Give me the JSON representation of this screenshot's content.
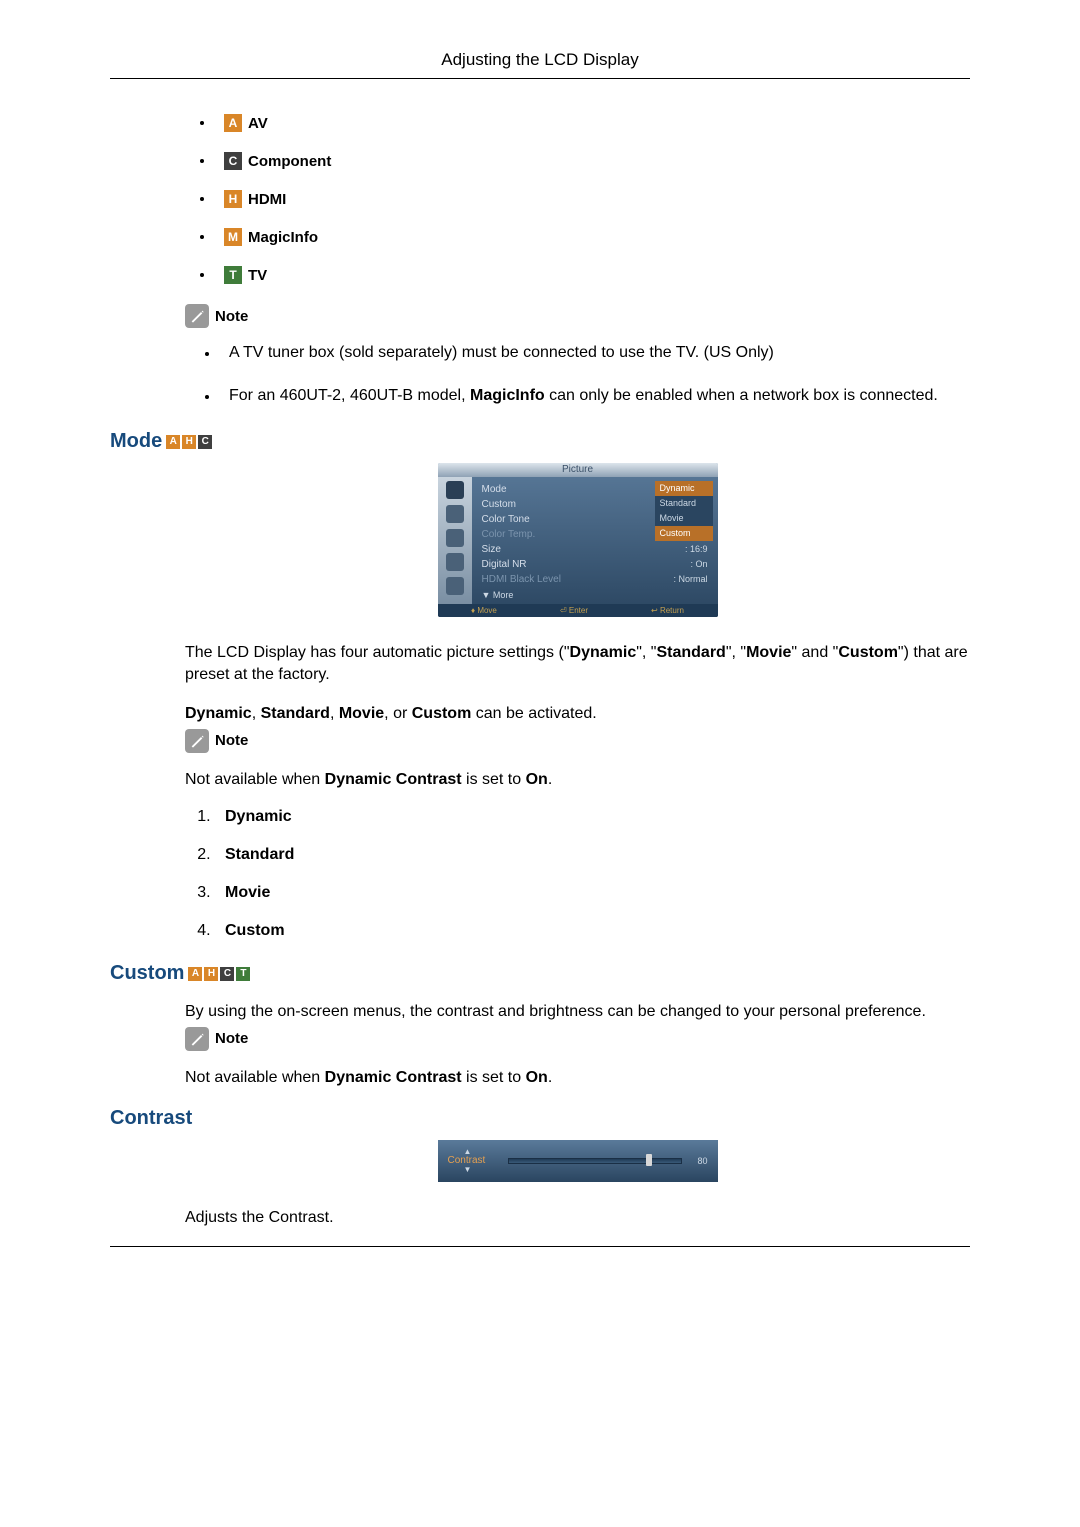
{
  "header": {
    "title": "Adjusting the LCD Display"
  },
  "icons": {
    "colors": {
      "A": "#d98628",
      "C": "#3f3f3f",
      "H": "#d98628",
      "M": "#d98628",
      "T": "#3f7c3a"
    }
  },
  "sourceList": [
    {
      "iconLetter": "A",
      "colorKey": "A",
      "label": "AV"
    },
    {
      "iconLetter": "C",
      "colorKey": "C",
      "label": "Component"
    },
    {
      "iconLetter": "H",
      "colorKey": "H",
      "label": "HDMI"
    },
    {
      "iconLetter": "M",
      "colorKey": "M",
      "label": "MagicInfo"
    },
    {
      "iconLetter": "T",
      "colorKey": "T",
      "label": "TV"
    }
  ],
  "note1": {
    "label": "Note",
    "items": [
      {
        "text": "A TV tuner box (sold separately) must be connected to use the TV. (US Only)"
      },
      {
        "pre": "For an 460UT-2, 460UT-B model, ",
        "bold": "MagicInfo",
        "post": " can only be enabled when a network box is connected."
      }
    ]
  },
  "sectionMode": {
    "title": "Mode",
    "iconLetters": [
      "A",
      "H",
      "C"
    ],
    "osd": {
      "title": "Picture",
      "rows": [
        {
          "label": "Mode",
          "value": ""
        },
        {
          "label": "Custom",
          "value": ""
        },
        {
          "label": "Color Tone",
          "value": ""
        },
        {
          "label": "Color Temp.",
          "value": "",
          "dim": true
        },
        {
          "label": "Size",
          "value": ": 16:9"
        },
        {
          "label": "Digital NR",
          "value": ": On"
        },
        {
          "label": "HDMI Black Level",
          "value": ": Normal",
          "dim": true
        }
      ],
      "dropdown": [
        "Dynamic",
        "Standard",
        "Movie",
        "Custom"
      ],
      "dropdown_highlight": [
        0,
        3
      ],
      "more": "▼ More",
      "footer": [
        "♦ Move",
        "⏎ Enter",
        "↩ Return"
      ]
    },
    "para1_a": "The LCD Display has four automatic picture settings (\"",
    "para1_b": "Dynamic",
    "para1_c": "\", \"",
    "para1_d": "Standard",
    "para1_e": "\", \"",
    "para1_f": "Movie",
    "para1_g": "\" and \"",
    "para1_h": "Custom",
    "para1_i": "\") that are preset at the factory.",
    "para2_a": "Dynamic",
    "para2_b": ", ",
    "para2_c": "Standard",
    "para2_d": ", ",
    "para2_e": "Movie",
    "para2_f": ", or ",
    "para2_g": "Custom",
    "para2_h": " can be activated.",
    "note_label": "Note",
    "note_text_a": "Not available when ",
    "note_text_b": "Dynamic Contrast",
    "note_text_c": " is set to ",
    "note_text_d": "On",
    "note_text_e": ".",
    "modes": [
      "Dynamic",
      "Standard",
      "Movie",
      "Custom"
    ]
  },
  "sectionCustom": {
    "title": "Custom",
    "iconLetters": [
      "A",
      "H",
      "C",
      "T"
    ],
    "para": "By using the on-screen menus, the contrast and brightness can be changed to your personal preference.",
    "note_label": "Note",
    "note_text_a": "Not available when ",
    "note_text_b": "Dynamic Contrast",
    "note_text_c": " is set to ",
    "note_text_d": "On",
    "note_text_e": "."
  },
  "sectionContrast": {
    "title": "Contrast",
    "osd": {
      "label": "Contrast",
      "value": 80,
      "max": 100
    },
    "para": "Adjusts the Contrast."
  }
}
